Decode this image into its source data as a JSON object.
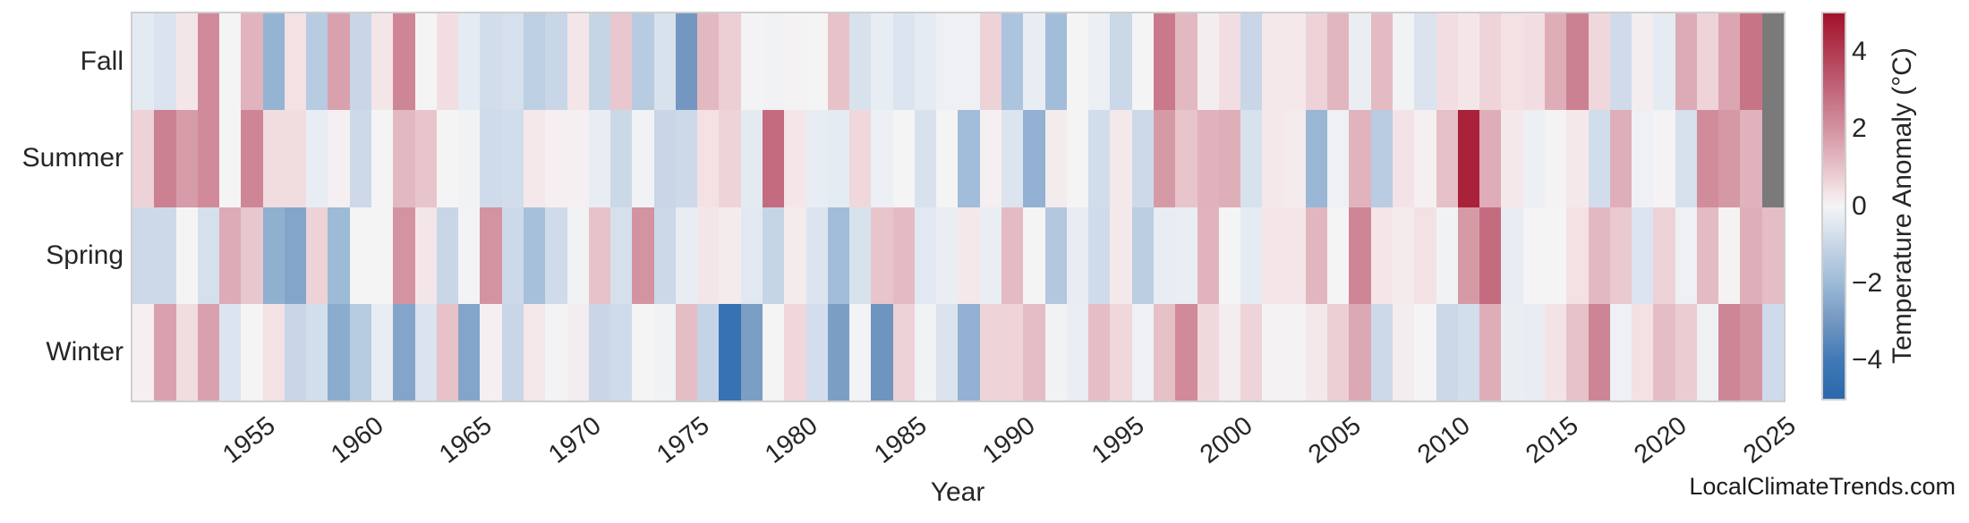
{
  "figure": {
    "xlabel": "Year",
    "watermark": "LocalClimateTrends.com"
  },
  "colorbar": {
    "label": "Temperature Anomaly (°C)",
    "vmin": -5,
    "vmax": 5,
    "ticks": [
      {
        "label": "4",
        "value": 4
      },
      {
        "label": "2",
        "value": 2
      },
      {
        "label": "0",
        "value": 0
      },
      {
        "label": "−2",
        "value": -2
      },
      {
        "label": "−4",
        "value": -4
      }
    ]
  },
  "colors": {
    "background": "#ffffff",
    "text": "#262626",
    "spine": "#cfcfcf",
    "nan_cell": "#7a7a7a",
    "colormap_stops": [
      [
        -5.0,
        "#2a68ac"
      ],
      [
        -4.0,
        "#4079b6"
      ],
      [
        -3.0,
        "#7397c1"
      ],
      [
        -2.0,
        "#9dbad7"
      ],
      [
        -1.0,
        "#c8d6e7"
      ],
      [
        -0.4,
        "#e3eaf2"
      ],
      [
        0.0,
        "#f5f4f5"
      ],
      [
        0.4,
        "#f3e1e4"
      ],
      [
        1.0,
        "#e7c2c9"
      ],
      [
        2.0,
        "#d393a1"
      ],
      [
        3.0,
        "#c2677c"
      ],
      [
        4.0,
        "#b23b52"
      ],
      [
        5.0,
        "#a31229"
      ]
    ]
  },
  "chart_data": {
    "type": "heatmap",
    "title": "",
    "xlabel": "Year",
    "ylabel": "",
    "colorbar_label": "Temperature Anomaly (°C)",
    "rows": [
      "Fall",
      "Summer",
      "Spring",
      "Winter"
    ],
    "year_start": 1950,
    "year_end": 2025,
    "x_tick_years": [
      1955,
      1960,
      1965,
      1970,
      1975,
      1980,
      1985,
      1990,
      1995,
      2000,
      2005,
      2010,
      2015,
      2020,
      2025
    ],
    "value_range": [
      -5,
      5
    ],
    "missing_cells_note": "null = no data (gray cell)",
    "series": [
      {
        "name": "Fall",
        "values": [
          -0.4,
          -0.6,
          0.3,
          2.2,
          0.0,
          1.3,
          -2.2,
          0.4,
          -1.4,
          1.7,
          -1.0,
          0.3,
          2.3,
          0.0,
          0.45,
          -0.35,
          -0.8,
          -0.7,
          -1.25,
          -1.0,
          0.3,
          -1.05,
          0.9,
          -1.4,
          -0.65,
          -3.0,
          1.2,
          0.75,
          -0.05,
          -0.1,
          0.05,
          0.0,
          1.0,
          -0.65,
          -0.3,
          -0.55,
          -0.35,
          -0.15,
          -0.15,
          0.7,
          -1.65,
          -0.3,
          -1.9,
          0.0,
          -0.2,
          -0.95,
          0.0,
          2.6,
          1.2,
          0.15,
          0.45,
          -1.0,
          0.25,
          0.25,
          0.7,
          1.25,
          -0.25,
          1.15,
          -0.1,
          -0.6,
          0.45,
          0.3,
          0.65,
          0.4,
          0.45,
          1.45,
          2.4,
          0.6,
          -0.85,
          0.15,
          -0.35,
          1.5,
          0.65,
          1.6,
          2.7,
          null
        ]
      },
      {
        "name": "Summer",
        "values": [
          0.7,
          2.4,
          1.8,
          2.2,
          0.0,
          2.3,
          0.5,
          0.5,
          -0.3,
          0.1,
          -0.9,
          0.0,
          1.2,
          0.95,
          0.0,
          -0.1,
          -0.85,
          -0.8,
          0.25,
          0.1,
          0.1,
          -0.3,
          -0.95,
          -0.1,
          -1.0,
          -0.9,
          0.4,
          0.65,
          -0.4,
          2.9,
          0.3,
          -0.3,
          -0.35,
          0.6,
          -0.2,
          0.0,
          -0.65,
          0.0,
          -1.9,
          0.1,
          -0.55,
          -2.25,
          0.2,
          0.0,
          -0.8,
          0.25,
          -0.9,
          1.85,
          0.95,
          1.35,
          1.4,
          -0.65,
          0.25,
          0.2,
          -2.1,
          -0.15,
          1.3,
          -1.35,
          0.35,
          0.1,
          1.05,
          4.6,
          1.45,
          0.25,
          -0.2,
          0.05,
          0.25,
          -0.8,
          1.4,
          -0.15,
          0.05,
          -0.7,
          2.15,
          1.9,
          1.35,
          null
        ]
      },
      {
        "name": "Spring",
        "values": [
          -0.9,
          -0.9,
          0.0,
          -0.7,
          1.5,
          0.9,
          -2.3,
          -2.6,
          0.7,
          -2.0,
          0.0,
          0.0,
          2.0,
          0.3,
          -1.0,
          -0.05,
          2.0,
          -0.9,
          -1.8,
          -0.85,
          -0.1,
          1.0,
          -0.7,
          2.0,
          -0.95,
          -0.3,
          0.3,
          0.2,
          -0.45,
          -1.05,
          0.2,
          -0.55,
          -1.9,
          -0.65,
          0.95,
          1.15,
          -0.45,
          -0.25,
          0.25,
          -0.25,
          1.15,
          0.0,
          -1.5,
          -0.3,
          -0.85,
          0.25,
          -1.3,
          -0.3,
          -0.25,
          1.3,
          0.0,
          -0.35,
          0.3,
          0.3,
          1.25,
          0.0,
          2.3,
          0.3,
          0.2,
          0.4,
          -0.1,
          1.85,
          2.9,
          -0.3,
          0.0,
          0.0,
          0.4,
          1.2,
          0.85,
          -0.55,
          0.7,
          -0.15,
          1.15,
          0.05,
          1.4,
          1.1
        ]
      },
      {
        "name": "Winter",
        "values": [
          0.1,
          1.7,
          0.5,
          1.7,
          -0.55,
          0.0,
          0.4,
          -1.0,
          -0.75,
          -2.4,
          -1.4,
          -0.3,
          -2.6,
          -0.6,
          1.0,
          -2.6,
          0.1,
          -1.0,
          0.25,
          -0.05,
          0.15,
          -1.0,
          -0.85,
          0.0,
          -0.1,
          1.1,
          -1.1,
          -4.4,
          -2.8,
          0.0,
          0.6,
          -0.75,
          -2.8,
          -0.05,
          -3.1,
          0.7,
          -0.1,
          -0.6,
          -2.25,
          0.65,
          0.65,
          1.1,
          -0.1,
          -0.25,
          1.1,
          0.6,
          -0.15,
          1.05,
          2.2,
          0.55,
          0.15,
          0.65,
          0.05,
          0.05,
          0.25,
          0.75,
          1.55,
          -0.9,
          0.15,
          0.0,
          -0.95,
          -0.75,
          1.45,
          -0.25,
          -0.3,
          0.35,
          1.0,
          2.35,
          -0.15,
          0.4,
          1.1,
          0.8,
          -0.15,
          2.3,
          1.95,
          -0.85
        ]
      }
    ]
  }
}
